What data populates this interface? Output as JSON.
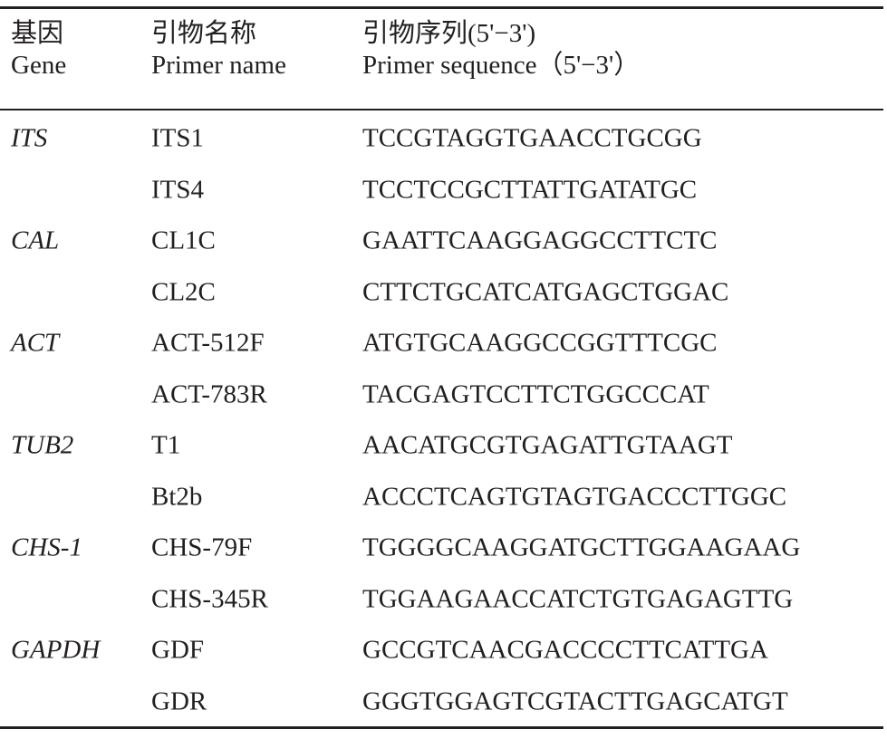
{
  "header": {
    "gene_cn": "基因",
    "gene_en": "Gene",
    "name_cn": "引物名称",
    "name_en": "Primer name",
    "seq_cn": "引物序列(5'−3')",
    "seq_en": "Primer sequence（5'−3'）"
  },
  "rows": [
    {
      "gene": "ITS",
      "primer": "ITS1",
      "sequence": "TCCGTAGGTGAACCTGCGG"
    },
    {
      "gene": "",
      "primer": "ITS4",
      "sequence": "TCCTCCGCTTATTGATATGC"
    },
    {
      "gene": "CAL",
      "primer": "CL1C",
      "sequence": "GAATTCAAGGAGGCCTTCTC"
    },
    {
      "gene": "",
      "primer": "CL2C",
      "sequence": "CTTCTGCATCATGAGCTGGAC"
    },
    {
      "gene": "ACT",
      "primer": "ACT-512F",
      "sequence": "ATGTGCAAGGCCGGTTTCGC"
    },
    {
      "gene": "",
      "primer": "ACT-783R",
      "sequence": "TACGAGTCCTTCTGGCCCAT"
    },
    {
      "gene": "TUB2",
      "primer": "T1",
      "sequence": "AACATGCGTGAGATTGTAAGT"
    },
    {
      "gene": "",
      "primer": "Bt2b",
      "sequence": "ACCCTCAGTGTAGTGACCCTTGGC"
    },
    {
      "gene": "CHS-1",
      "primer": "CHS-79F",
      "sequence": "TGGGGCAAGGATGCTTGGAAGAAG"
    },
    {
      "gene": "",
      "primer": "CHS-345R",
      "sequence": "TGGAAGAACCATCTGTGAGAGTTG"
    },
    {
      "gene": "GAPDH",
      "primer": "GDF",
      "sequence": "GCCGTCAACGACCCCTTCATTGA"
    },
    {
      "gene": "",
      "primer": "GDR",
      "sequence": "GGGTGGAGTCGTACTTGAGCATGT"
    }
  ]
}
